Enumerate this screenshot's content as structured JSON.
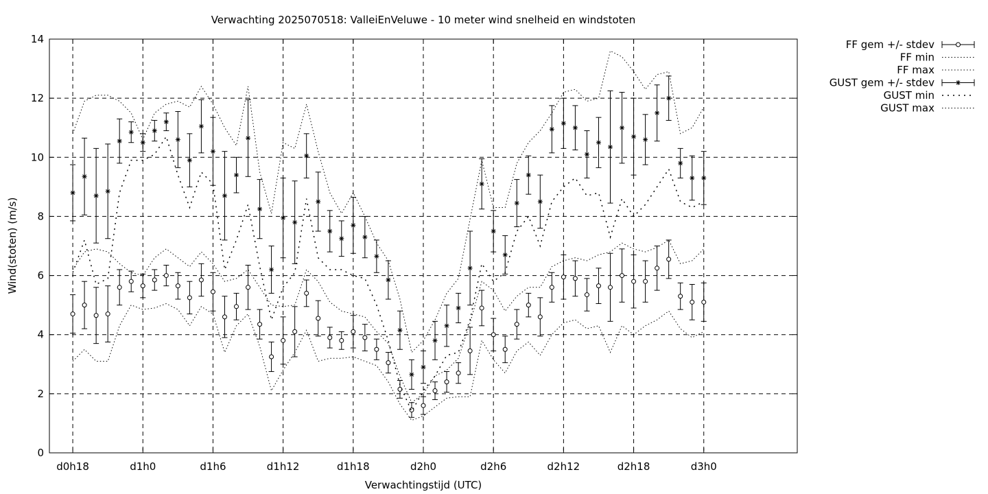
{
  "chart_data": {
    "type": "line",
    "title": "Verwachting 2025070518: ValleiEnVeluwe - 10 meter wind snelheid en windstoten",
    "xlabel": "Verwachtingstijd (UTC)",
    "ylabel": "Wind(stoten) (m/s)",
    "ylim": [
      0,
      14
    ],
    "xlim": [
      16,
      80
    ],
    "y_ticks": [
      0,
      2,
      4,
      6,
      8,
      10,
      12,
      14
    ],
    "x_ticks": [
      {
        "x": 18,
        "label": "d0h18"
      },
      {
        "x": 24,
        "label": "d1h0"
      },
      {
        "x": 30,
        "label": "d1h6"
      },
      {
        "x": 36,
        "label": "d1h12"
      },
      {
        "x": 42,
        "label": "d1h18"
      },
      {
        "x": 48,
        "label": "d2h0"
      },
      {
        "x": 54,
        "label": "d2h6"
      },
      {
        "x": 60,
        "label": "d2h12"
      },
      {
        "x": 66,
        "label": "d2h18"
      },
      {
        "x": 72,
        "label": "d3h0"
      }
    ],
    "grid": true,
    "legend_position": "outside-top-right",
    "x": [
      18,
      19,
      20,
      21,
      22,
      23,
      24,
      25,
      26,
      27,
      28,
      29,
      30,
      31,
      32,
      33,
      34,
      35,
      36,
      37,
      38,
      39,
      40,
      41,
      42,
      43,
      44,
      45,
      46,
      47,
      48,
      49,
      50,
      51,
      52,
      53,
      54,
      55,
      56,
      57,
      58,
      59,
      60,
      61,
      62,
      63,
      64,
      65,
      66,
      67,
      68,
      69,
      70,
      71,
      72
    ],
    "series": [
      {
        "name": "FF gem +/- stdev",
        "style": "errorbar-circle",
        "values": [
          4.7,
          5.0,
          4.65,
          4.7,
          5.6,
          5.8,
          5.65,
          5.85,
          6.0,
          5.65,
          5.25,
          5.85,
          5.45,
          4.6,
          4.95,
          5.6,
          4.35,
          3.25,
          3.8,
          4.1,
          5.4,
          4.55,
          3.9,
          3.8,
          4.1,
          3.9,
          3.5,
          3.05,
          2.15,
          1.45,
          1.6,
          2.1,
          2.4,
          2.7,
          3.45,
          4.9,
          4.0,
          3.5,
          4.35,
          5.0,
          4.6,
          5.6,
          5.95,
          5.9,
          5.35,
          5.65,
          5.6,
          6.0,
          5.8,
          5.8,
          6.25,
          6.55,
          5.3,
          5.1,
          5.1
        ],
        "stdev": [
          0.65,
          0.8,
          0.95,
          0.95,
          0.6,
          0.35,
          0.4,
          0.35,
          0.35,
          0.45,
          0.55,
          0.55,
          0.65,
          0.7,
          0.45,
          0.75,
          0.5,
          0.5,
          0.8,
          0.85,
          0.45,
          0.6,
          0.35,
          0.3,
          0.55,
          0.45,
          0.35,
          0.35,
          0.3,
          0.25,
          0.3,
          0.3,
          0.35,
          0.35,
          0.8,
          0.6,
          0.55,
          0.45,
          0.5,
          0.4,
          0.65,
          0.5,
          0.75,
          0.6,
          0.55,
          0.6,
          1.15,
          0.9,
          0.9,
          0.7,
          0.75,
          0.65,
          0.45,
          0.6,
          0.65
        ]
      },
      {
        "name": "FF min",
        "style": "dotted",
        "values": [
          3.1,
          3.5,
          3.1,
          3.1,
          4.3,
          5.0,
          4.85,
          4.9,
          5.05,
          4.85,
          4.3,
          4.95,
          4.7,
          3.4,
          4.3,
          4.7,
          3.6,
          2.1,
          2.8,
          3.4,
          4.15,
          3.1,
          3.2,
          3.2,
          3.25,
          3.1,
          2.95,
          2.4,
          1.65,
          1.1,
          1.25,
          1.55,
          1.85,
          1.9,
          1.9,
          3.8,
          3.15,
          2.7,
          3.45,
          3.75,
          3.3,
          4.0,
          4.4,
          4.5,
          4.2,
          4.3,
          3.4,
          4.3,
          4.0,
          4.3,
          4.5,
          4.8,
          4.2,
          3.9,
          4.1
        ]
      },
      {
        "name": "FF max",
        "style": "dotted",
        "values": [
          6.2,
          6.8,
          6.9,
          6.8,
          6.4,
          6.1,
          6.0,
          6.6,
          6.9,
          6.6,
          6.3,
          6.8,
          6.4,
          5.8,
          5.9,
          6.2,
          5.6,
          5.0,
          4.95,
          5.0,
          6.2,
          5.8,
          5.1,
          4.8,
          4.7,
          4.6,
          4.1,
          3.7,
          2.6,
          1.7,
          2.0,
          2.6,
          2.8,
          3.2,
          4.4,
          5.8,
          5.5,
          4.8,
          5.3,
          5.6,
          5.6,
          6.3,
          6.5,
          6.6,
          6.5,
          6.7,
          6.8,
          7.1,
          6.9,
          6.8,
          6.95,
          7.2,
          6.4,
          6.5,
          6.9
        ]
      },
      {
        "name": "GUST gem +/- stdev",
        "style": "errorbar-star",
        "values": [
          8.8,
          9.35,
          8.7,
          8.85,
          10.55,
          10.85,
          10.5,
          10.9,
          11.2,
          10.6,
          9.9,
          11.05,
          10.2,
          8.7,
          9.4,
          10.65,
          8.25,
          6.2,
          7.95,
          7.8,
          10.05,
          8.5,
          7.5,
          7.25,
          7.7,
          7.3,
          6.65,
          5.85,
          4.15,
          2.65,
          2.9,
          3.8,
          4.3,
          4.9,
          6.25,
          9.1,
          7.5,
          6.7,
          8.45,
          9.4,
          8.5,
          10.95,
          11.15,
          11.0,
          10.1,
          10.5,
          10.35,
          11.0,
          10.7,
          10.6,
          11.5,
          12.0,
          9.8,
          9.3,
          9.3
        ],
        "stdev": [
          0.95,
          1.3,
          1.6,
          1.6,
          0.75,
          0.35,
          0.3,
          0.35,
          0.3,
          0.95,
          0.9,
          0.9,
          1.15,
          1.5,
          0.6,
          1.3,
          1.0,
          0.8,
          1.35,
          1.4,
          0.75,
          1.0,
          0.7,
          0.6,
          0.95,
          0.7,
          0.55,
          0.65,
          0.65,
          0.5,
          0.55,
          0.65,
          0.7,
          0.5,
          1.25,
          0.85,
          0.7,
          0.65,
          0.8,
          0.65,
          0.9,
          0.8,
          0.85,
          0.75,
          0.8,
          0.85,
          1.9,
          1.2,
          1.3,
          0.85,
          0.95,
          0.75,
          0.5,
          0.75,
          0.9
        ]
      },
      {
        "name": "GUST min",
        "style": "dashdot",
        "values": [
          6.1,
          7.2,
          5.7,
          5.9,
          8.8,
          9.9,
          9.9,
          10.1,
          10.7,
          9.4,
          8.3,
          9.5,
          9.1,
          6.2,
          7.2,
          8.4,
          6.3,
          4.5,
          5.6,
          6.1,
          8.6,
          6.6,
          6.2,
          6.2,
          6.0,
          5.9,
          5.0,
          3.8,
          2.3,
          1.4,
          2.1,
          2.6,
          3.3,
          3.4,
          4.5,
          6.4,
          5.8,
          6.1,
          7.5,
          8.0,
          7.0,
          8.5,
          9.0,
          9.3,
          8.7,
          8.8,
          7.3,
          8.6,
          8.0,
          8.4,
          9.0,
          9.6,
          8.5,
          8.3,
          8.5
        ]
      },
      {
        "name": "GUST max",
        "style": "dotted",
        "values": [
          10.8,
          11.9,
          12.1,
          12.1,
          11.9,
          11.5,
          10.6,
          11.5,
          11.8,
          11.9,
          11.7,
          12.4,
          11.8,
          11.0,
          10.4,
          12.4,
          9.5,
          8.1,
          10.5,
          10.3,
          11.8,
          10.2,
          8.8,
          8.1,
          8.8,
          8.0,
          7.1,
          6.5,
          5.2,
          3.4,
          3.8,
          4.5,
          5.4,
          5.9,
          7.9,
          9.9,
          8.3,
          8.3,
          9.8,
          10.5,
          10.9,
          11.5,
          12.2,
          12.3,
          11.9,
          12.0,
          13.6,
          13.4,
          12.9,
          12.3,
          12.8,
          12.9,
          10.8,
          11.0,
          11.7
        ]
      }
    ]
  }
}
